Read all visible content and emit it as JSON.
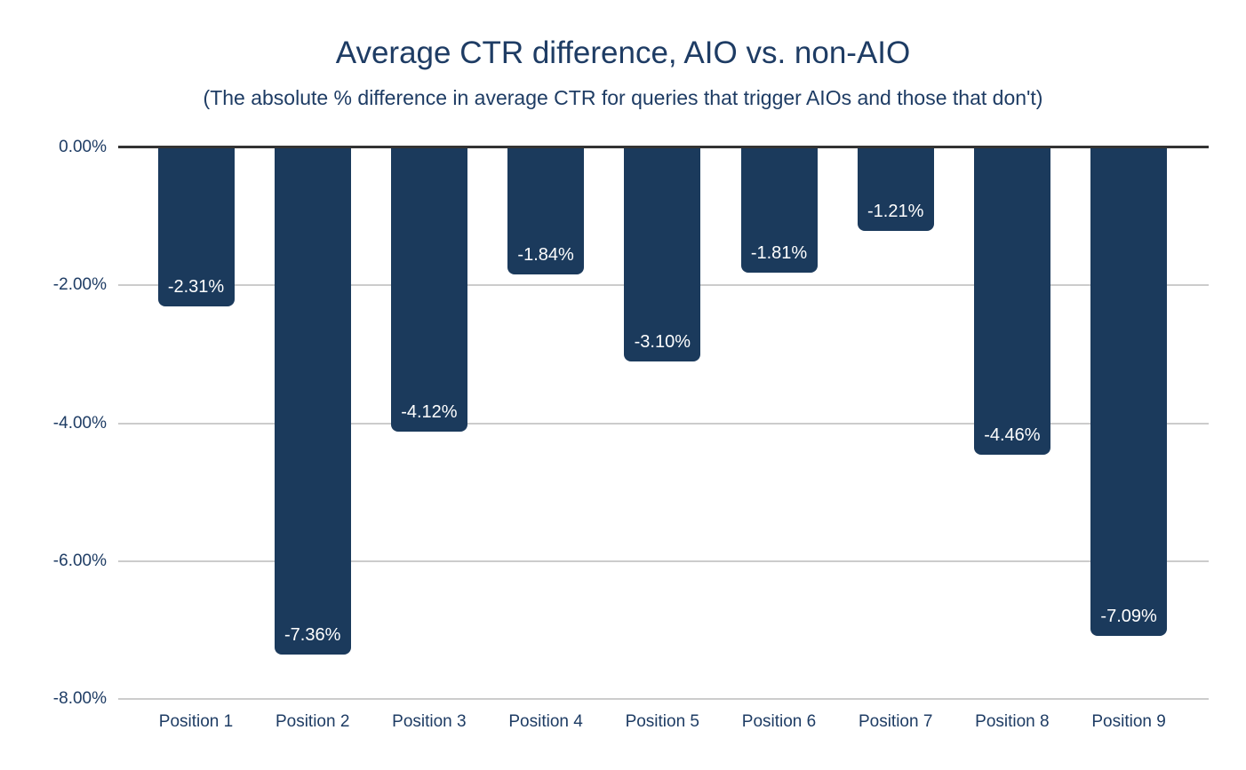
{
  "chart_data": {
    "type": "bar",
    "title": "Average CTR difference, AIO vs. non-AIO",
    "subtitle": "(The absolute % difference in average CTR for queries that trigger AIOs and those that don't)",
    "categories": [
      "Position 1",
      "Position 2",
      "Position 3",
      "Position 4",
      "Position 5",
      "Position 6",
      "Position 7",
      "Position 8",
      "Position 9"
    ],
    "values": [
      -2.31,
      -7.36,
      -4.12,
      -1.84,
      -3.1,
      -1.81,
      -1.21,
      -4.46,
      -7.09
    ],
    "value_labels": [
      "-2.31%",
      "-7.36%",
      "-4.12%",
      "-1.84%",
      "-3.10%",
      "-1.81%",
      "-1.21%",
      "-4.46%",
      "-7.09%"
    ],
    "xlabel": "",
    "ylabel": "",
    "ylim": [
      -8,
      0
    ],
    "y_ticks": [
      0,
      -2,
      -4,
      -6,
      -8
    ],
    "y_tick_labels": [
      "0.00%",
      "-2.00%",
      "-4.00%",
      "-6.00%",
      "-8.00%"
    ],
    "grid": true,
    "legend_position": "none",
    "colors": {
      "bar": "#1b3a5c",
      "text": "#1e3c64",
      "bar_label_text": "#ffffff",
      "gridline": "#cccccc",
      "zero_axis": "#333333",
      "background": "#ffffff"
    }
  }
}
